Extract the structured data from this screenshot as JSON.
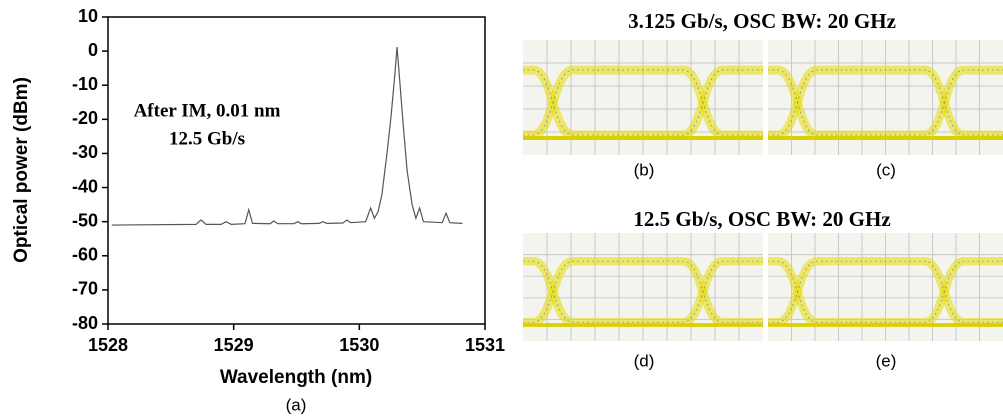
{
  "chart_data": {
    "type": "line",
    "color": "#555555",
    "xlabel": "Wavelength (nm)",
    "ylabel": "Optical power (dBm)",
    "panel_label": "(a)",
    "annotations": [
      "After IM, 0.01 nm",
      "12.5 Gb/s"
    ],
    "xlim": [
      1528,
      1531
    ],
    "ylim": [
      -80,
      10
    ],
    "xticks": [
      1528,
      1529,
      1530,
      1531
    ],
    "yticks": [
      -80,
      -70,
      -60,
      -50,
      -40,
      -30,
      -20,
      -10,
      0,
      10
    ],
    "x": [
      1528.03,
      1528.7,
      1528.74,
      1528.78,
      1528.9,
      1528.94,
      1528.98,
      1529.09,
      1529.12,
      1529.15,
      1529.29,
      1529.32,
      1529.35,
      1529.48,
      1529.51,
      1529.54,
      1529.68,
      1529.71,
      1529.74,
      1529.87,
      1529.9,
      1529.93,
      1530.05,
      1530.09,
      1530.12,
      1530.15,
      1530.18,
      1530.22,
      1530.25,
      1530.28,
      1530.3,
      1530.32,
      1530.35,
      1530.38,
      1530.42,
      1530.45,
      1530.48,
      1530.51,
      1530.66,
      1530.69,
      1530.72,
      1530.82
    ],
    "values": [
      -51,
      -50.8,
      -49.5,
      -50.8,
      -50.8,
      -50,
      -50.8,
      -50.6,
      -46.5,
      -50.5,
      -50.6,
      -49.8,
      -50.6,
      -50.6,
      -50,
      -50.6,
      -50.5,
      -50,
      -50.5,
      -50.4,
      -49.5,
      -50.3,
      -50,
      -46,
      -49,
      -47,
      -42,
      -30,
      -20,
      -8,
      1.2,
      -8,
      -22,
      -35,
      -45,
      -49,
      -46,
      -50,
      -50.3,
      -47.5,
      -50.3,
      -50.5
    ]
  },
  "eye_diagrams": {
    "titles": [
      "3.125 Gb/s, OSC BW: 20 GHz",
      "12.5 Gb/s, OSC BW: 20 GHz"
    ],
    "panels": [
      "(b)",
      "(c)",
      "(d)",
      "(e)"
    ]
  }
}
